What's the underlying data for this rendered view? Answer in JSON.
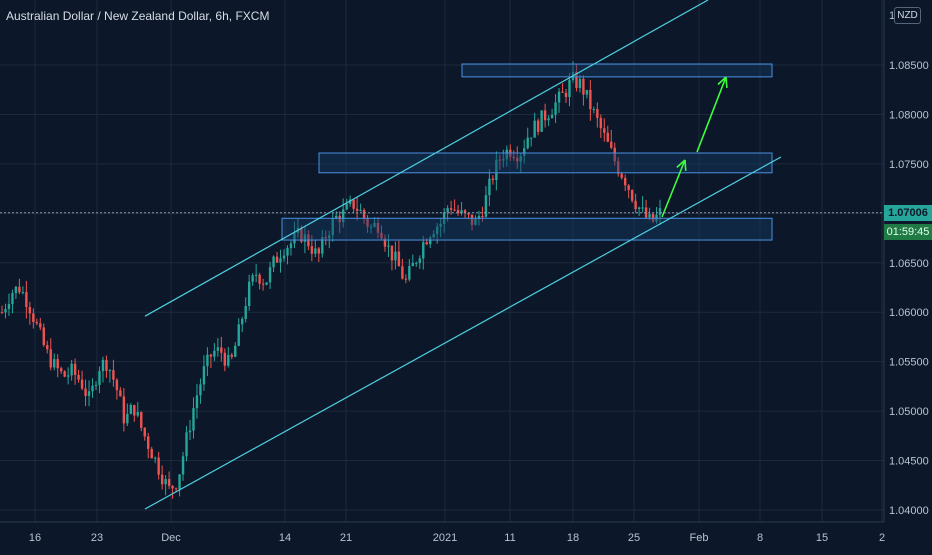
{
  "header": {
    "symbol_title": "Australian Dollar / New Zealand Dollar, 6h, FXCM",
    "currency": "NZD"
  },
  "price_axis": {
    "ticks": [
      "1.08500",
      "1.08000",
      "1.07500",
      "1.06500",
      "1.06000",
      "1.05500",
      "1.05000",
      "1.04500",
      "1.04000"
    ],
    "top_partial": "1.0",
    "current_price": "1.07006",
    "countdown": "01:59:45"
  },
  "time_axis": {
    "labels": [
      "16",
      "23",
      "Dec",
      "14",
      "21",
      "2021",
      "11",
      "18",
      "25",
      "Feb",
      "8",
      "15",
      "2"
    ]
  },
  "colors": {
    "background": "#0c1829",
    "up": "#26a69a",
    "down": "#ef5350",
    "channel": "#4dd0e1",
    "zone_border": "#4a90e2",
    "zone_fill": "#163a66",
    "arrow": "#3cff3c"
  },
  "chart_data": {
    "type": "candlestick",
    "instrument": "Australian Dollar / New Zealand Dollar",
    "timeframe": "6h",
    "source": "FXCM",
    "y_range": [
      1.04,
      1.088
    ],
    "current_price": 1.07006,
    "annotations": {
      "resistance_zones": [
        {
          "low": 1.0838,
          "high": 1.0851
        },
        {
          "low": 1.0741,
          "high": 1.0761
        },
        {
          "low": 1.0673,
          "high": 1.0695
        }
      ],
      "ascending_channel": {
        "upper": [
          {
            "date": "Nov 27",
            "price": 1.0596
          },
          {
            "date": "Jan 29",
            "price": 1.092
          }
        ],
        "lower": [
          {
            "date": "Nov 27",
            "price": 1.0401
          },
          {
            "date": "Feb 10",
            "price": 1.0757
          }
        ]
      },
      "projection_arrows": [
        {
          "from": 1.07,
          "to": 1.0757
        },
        {
          "from": 1.0762,
          "to": 1.0844
        }
      ]
    },
    "series": [
      {
        "name": "AUD/NZD",
        "approx_path": [
          1.06,
          1.062,
          1.0625,
          1.061,
          1.0585,
          1.056,
          1.0545,
          1.0535,
          1.054,
          1.053,
          1.051,
          1.0545,
          1.055,
          1.0525,
          1.049,
          1.0505,
          1.048,
          1.046,
          1.044,
          1.042,
          1.043,
          1.047,
          1.051,
          1.054,
          1.056,
          1.056,
          1.0545,
          1.058,
          1.062,
          1.064,
          1.063,
          1.065,
          1.0665,
          1.067,
          1.068,
          1.067,
          1.0655,
          1.068,
          1.0695,
          1.07,
          1.071,
          1.07,
          1.0685,
          1.069,
          1.0665,
          1.065,
          1.063,
          1.065,
          1.067,
          1.0685,
          1.069,
          1.071,
          1.07,
          1.0695,
          1.069,
          1.071,
          1.074,
          1.076,
          1.0765,
          1.076,
          1.078,
          1.079,
          1.08,
          1.081,
          1.082,
          1.0835,
          1.083,
          1.081,
          1.079,
          1.077,
          1.075,
          1.0735,
          1.0715,
          1.07,
          1.069,
          1.07
        ]
      }
    ]
  }
}
